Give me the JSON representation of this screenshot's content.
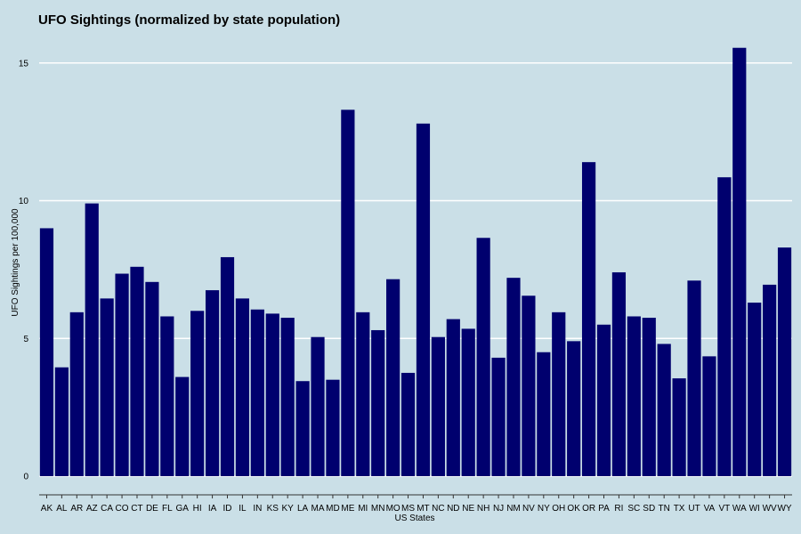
{
  "chart_data": {
    "type": "bar",
    "title": "UFO Sightings (normalized by state population)",
    "xlabel": "US States",
    "ylabel": "UFO Sightings per 100,000",
    "ylim": [
      0,
      16
    ],
    "yticks": [
      0,
      5,
      10,
      15
    ],
    "grid": "horizontal",
    "bar_color": "#00006e",
    "background": "#cadfe7",
    "categories": [
      "AK",
      "AL",
      "AR",
      "AZ",
      "CA",
      "CO",
      "CT",
      "DE",
      "FL",
      "GA",
      "HI",
      "IA",
      "ID",
      "IL",
      "IN",
      "KS",
      "KY",
      "LA",
      "MA",
      "MD",
      "ME",
      "MI",
      "MN",
      "MO",
      "MS",
      "MT",
      "NC",
      "ND",
      "NE",
      "NH",
      "NJ",
      "NM",
      "NV",
      "NY",
      "OH",
      "OK",
      "OR",
      "PA",
      "RI",
      "SC",
      "SD",
      "TN",
      "TX",
      "UT",
      "VA",
      "VT",
      "WA",
      "WI",
      "WV",
      "WY"
    ],
    "values": [
      9.0,
      3.95,
      5.95,
      9.9,
      6.45,
      7.35,
      7.6,
      7.05,
      5.8,
      3.6,
      6.0,
      6.75,
      7.95,
      6.45,
      6.05,
      5.9,
      5.75,
      3.45,
      5.05,
      3.5,
      13.3,
      5.95,
      5.3,
      7.15,
      3.75,
      12.8,
      5.05,
      5.7,
      5.35,
      8.65,
      4.3,
      7.2,
      6.55,
      4.5,
      5.95,
      4.9,
      11.4,
      5.5,
      7.4,
      5.8,
      5.75,
      4.8,
      3.55,
      7.1,
      4.35,
      10.85,
      15.55,
      6.3,
      6.95,
      8.3
    ]
  }
}
